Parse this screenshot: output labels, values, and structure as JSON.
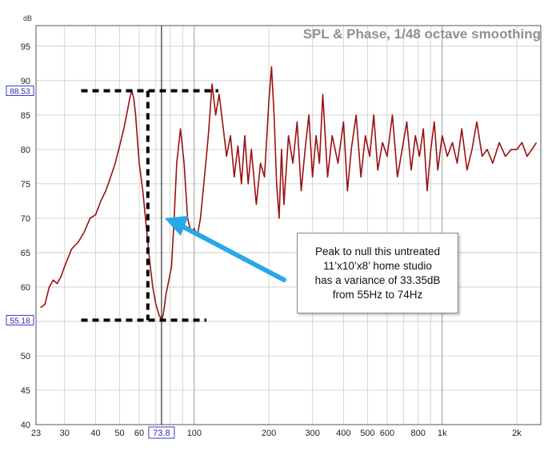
{
  "chart_data": {
    "type": "line",
    "title": "SPL & Phase, 1/48 octave smoothing",
    "ylabel": "dB",
    "xlabel": "",
    "x_scale": "log",
    "xlim": [
      23,
      2500
    ],
    "ylim": [
      40,
      98
    ],
    "grid": true,
    "legend": "none",
    "x_ticks": [
      {
        "value": 23,
        "label": "23",
        "major": true
      },
      {
        "value": 30,
        "label": "30",
        "major": false
      },
      {
        "value": 40,
        "label": "40",
        "major": false
      },
      {
        "value": 50,
        "label": "50",
        "major": false
      },
      {
        "value": 60,
        "label": "60",
        "major": false
      },
      {
        "value": 70,
        "label": "",
        "major": false
      },
      {
        "value": 80,
        "label": "80",
        "major": false
      },
      {
        "value": 90,
        "label": "",
        "major": false
      },
      {
        "value": 100,
        "label": "100",
        "major": true
      },
      {
        "value": 200,
        "label": "200",
        "major": false
      },
      {
        "value": 300,
        "label": "300",
        "major": false
      },
      {
        "value": 400,
        "label": "400",
        "major": false
      },
      {
        "value": 500,
        "label": "500",
        "major": false
      },
      {
        "value": 600,
        "label": "600",
        "major": false
      },
      {
        "value": 700,
        "label": "",
        "major": false
      },
      {
        "value": 800,
        "label": "800",
        "major": false
      },
      {
        "value": 900,
        "label": "",
        "major": false
      },
      {
        "value": 1000,
        "label": "1k",
        "major": true
      },
      {
        "value": 2000,
        "label": "2k",
        "major": false
      }
    ],
    "y_ticks": [
      40,
      45,
      50,
      55,
      60,
      65,
      70,
      75,
      80,
      85,
      90,
      95
    ],
    "cursor": {
      "x": 73.8,
      "x_label": "73.8"
    },
    "markers": {
      "peak_db": 88.53,
      "peak_label": "88.53",
      "null_db": 55.18,
      "null_label": "55.18"
    },
    "series": [
      {
        "color": "#9b1111",
        "x": [
          24,
          25,
          26,
          27,
          28,
          29,
          30,
          32,
          34,
          36,
          38,
          40,
          42,
          44,
          46,
          48,
          50,
          52,
          54,
          55,
          56,
          57,
          58,
          60,
          62,
          64,
          66,
          68,
          70,
          72,
          73.8,
          75,
          77,
          79,
          81,
          83,
          85,
          88,
          91,
          94,
          97,
          100,
          103,
          106,
          110,
          114,
          118,
          122,
          126,
          130,
          135,
          140,
          145,
          150,
          155,
          160,
          165,
          170,
          178,
          185,
          192,
          200,
          205,
          210,
          215,
          220,
          225,
          230,
          240,
          250,
          260,
          270,
          280,
          290,
          300,
          310,
          320,
          330,
          345,
          360,
          380,
          400,
          415,
          430,
          450,
          470,
          490,
          510,
          530,
          550,
          575,
          600,
          630,
          660,
          690,
          720,
          750,
          780,
          810,
          840,
          870,
          900,
          930,
          960,
          1000,
          1050,
          1100,
          1150,
          1200,
          1260,
          1320,
          1380,
          1450,
          1520,
          1600,
          1700,
          1800,
          1900,
          2000,
          2100,
          2200,
          2300,
          2400
        ],
        "y": [
          57,
          57.5,
          60,
          61,
          60.5,
          61.5,
          63,
          65.5,
          66.5,
          68,
          70,
          70.5,
          72.5,
          74,
          76,
          78,
          80.5,
          83,
          86,
          87.5,
          88.5,
          87.5,
          85,
          78,
          74,
          69,
          64,
          60,
          57.5,
          56,
          55.2,
          56,
          59,
          61,
          63,
          70,
          78,
          83,
          78,
          70,
          68,
          68.5,
          67.5,
          70,
          76,
          82,
          89.5,
          85,
          88,
          84,
          79,
          82,
          76,
          80.5,
          75,
          82,
          75,
          80,
          72,
          78,
          76,
          87,
          92,
          85,
          75,
          70,
          80,
          72,
          82,
          78,
          84,
          74,
          80,
          85,
          76,
          82,
          78,
          88,
          76,
          82,
          78,
          84,
          74,
          80,
          85,
          76,
          82,
          79,
          85,
          77,
          81,
          79,
          85,
          76,
          80,
          84,
          77,
          82,
          79,
          83,
          74,
          80,
          84,
          77,
          82,
          79,
          81,
          78,
          83,
          77,
          80,
          84,
          79,
          80,
          78,
          81,
          79,
          80,
          80,
          81,
          79,
          80,
          81
        ]
      }
    ],
    "annotations": [
      {
        "type": "arrow",
        "color": "#29a8e8"
      },
      {
        "type": "dashed-lines",
        "color": "#000000"
      }
    ]
  },
  "callout": {
    "lines": [
      "Peak to null this untreated",
      "11’x10’x8’ home studio",
      "has a variance of 33.35dB",
      "from 55Hz to 74Hz"
    ]
  }
}
